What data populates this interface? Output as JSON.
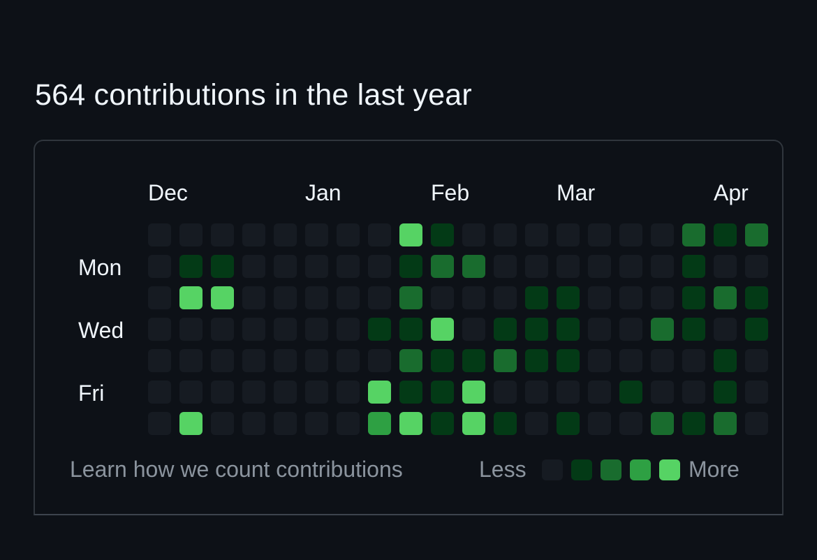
{
  "heading": "564 contributions in the last year",
  "months": [
    "Dec",
    "Jan",
    "Feb",
    "Mar",
    "Apr"
  ],
  "day_labels": [
    "Mon",
    "Wed",
    "Fri"
  ],
  "footer": {
    "learn_link": "Learn how we count contributions",
    "less_label": "Less",
    "more_label": "More"
  },
  "level_colors": [
    "#161b22",
    "#033a16",
    "#196c2e",
    "#2ea043",
    "#56d364"
  ],
  "contribution_levels": [
    [
      0,
      0,
      0,
      0,
      0,
      0,
      0,
      0,
      4,
      1,
      0,
      0,
      0,
      0,
      0,
      0,
      0,
      2,
      1,
      2
    ],
    [
      0,
      1,
      1,
      0,
      0,
      0,
      0,
      0,
      1,
      2,
      2,
      0,
      0,
      0,
      0,
      0,
      0,
      1,
      0,
      0
    ],
    [
      0,
      4,
      4,
      0,
      0,
      0,
      0,
      0,
      2,
      0,
      0,
      0,
      1,
      1,
      0,
      0,
      0,
      1,
      2,
      1
    ],
    [
      0,
      0,
      0,
      0,
      0,
      0,
      0,
      1,
      1,
      4,
      0,
      1,
      1,
      1,
      0,
      0,
      2,
      1,
      0,
      1
    ],
    [
      0,
      0,
      0,
      0,
      0,
      0,
      0,
      0,
      2,
      1,
      1,
      2,
      1,
      1,
      0,
      0,
      0,
      0,
      1,
      0
    ],
    [
      0,
      0,
      0,
      0,
      0,
      0,
      0,
      4,
      1,
      1,
      4,
      0,
      0,
      0,
      0,
      1,
      0,
      0,
      1,
      0
    ],
    [
      0,
      4,
      0,
      0,
      0,
      0,
      0,
      3,
      4,
      1,
      4,
      1,
      0,
      1,
      0,
      0,
      2,
      1,
      2,
      0
    ]
  ]
}
